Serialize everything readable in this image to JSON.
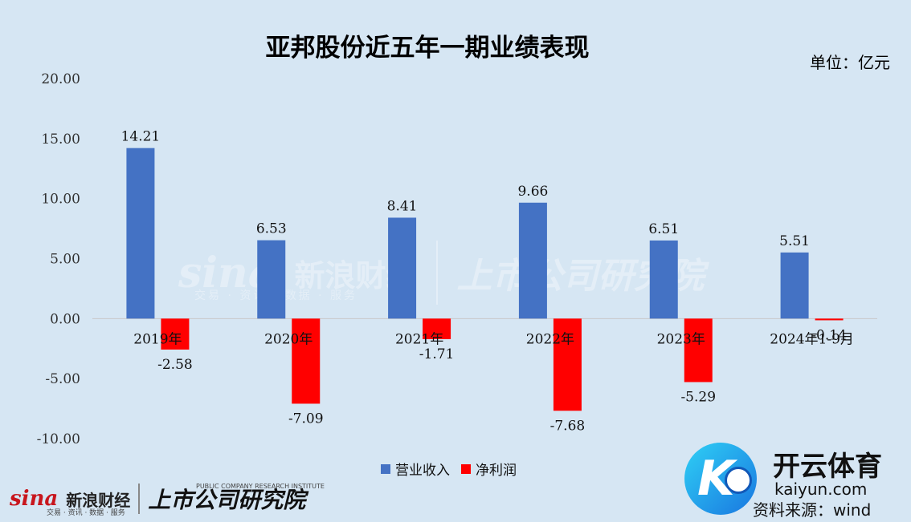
{
  "title": "亚邦股份近五年一期业绩表现",
  "unit": "单位：亿元",
  "source": "资料来源：wind",
  "watermark": {
    "brand_mark": "sina",
    "brand_name": "新浪财经",
    "brand_sub": "交易 · 资讯 · 数据 · 服务",
    "institute": "上市公司研究院",
    "institute_sub": "PUBLIC COMPANY RESEARCH INSTITUTE"
  },
  "kaiyun": {
    "name": "开云体育",
    "domain": "kaiyun.com"
  },
  "colors": {
    "revenue": "#4472c4",
    "profit": "#ff0000",
    "background": "#d6e6f3"
  },
  "chart_data": {
    "type": "bar",
    "categories": [
      "2019年",
      "2020年",
      "2021年",
      "2022年",
      "2023年",
      "2024年1-9月"
    ],
    "series": [
      {
        "name": "营业收入",
        "values": [
          14.21,
          6.53,
          8.41,
          9.66,
          6.51,
          5.51
        ],
        "labels": [
          "14.21",
          "6.53",
          "8.41",
          "9.66",
          "6.51",
          "5.51"
        ]
      },
      {
        "name": "净利润",
        "values": [
          -2.58,
          -7.09,
          -1.71,
          -7.68,
          -5.29,
          -0.14
        ],
        "labels": [
          "-2.58",
          "-7.09",
          "-1.71",
          "-7.68",
          "-5.29",
          "-0.14"
        ]
      }
    ],
    "ylim": [
      -10,
      20
    ],
    "yticks": [
      "20.00",
      "15.00",
      "10.00",
      "5.00",
      "0.00",
      "-5.00",
      "-10.00"
    ],
    "ytick_values": [
      20,
      15,
      10,
      5,
      0,
      -5,
      -10
    ],
    "grid": false,
    "legend_position": "bottom"
  }
}
